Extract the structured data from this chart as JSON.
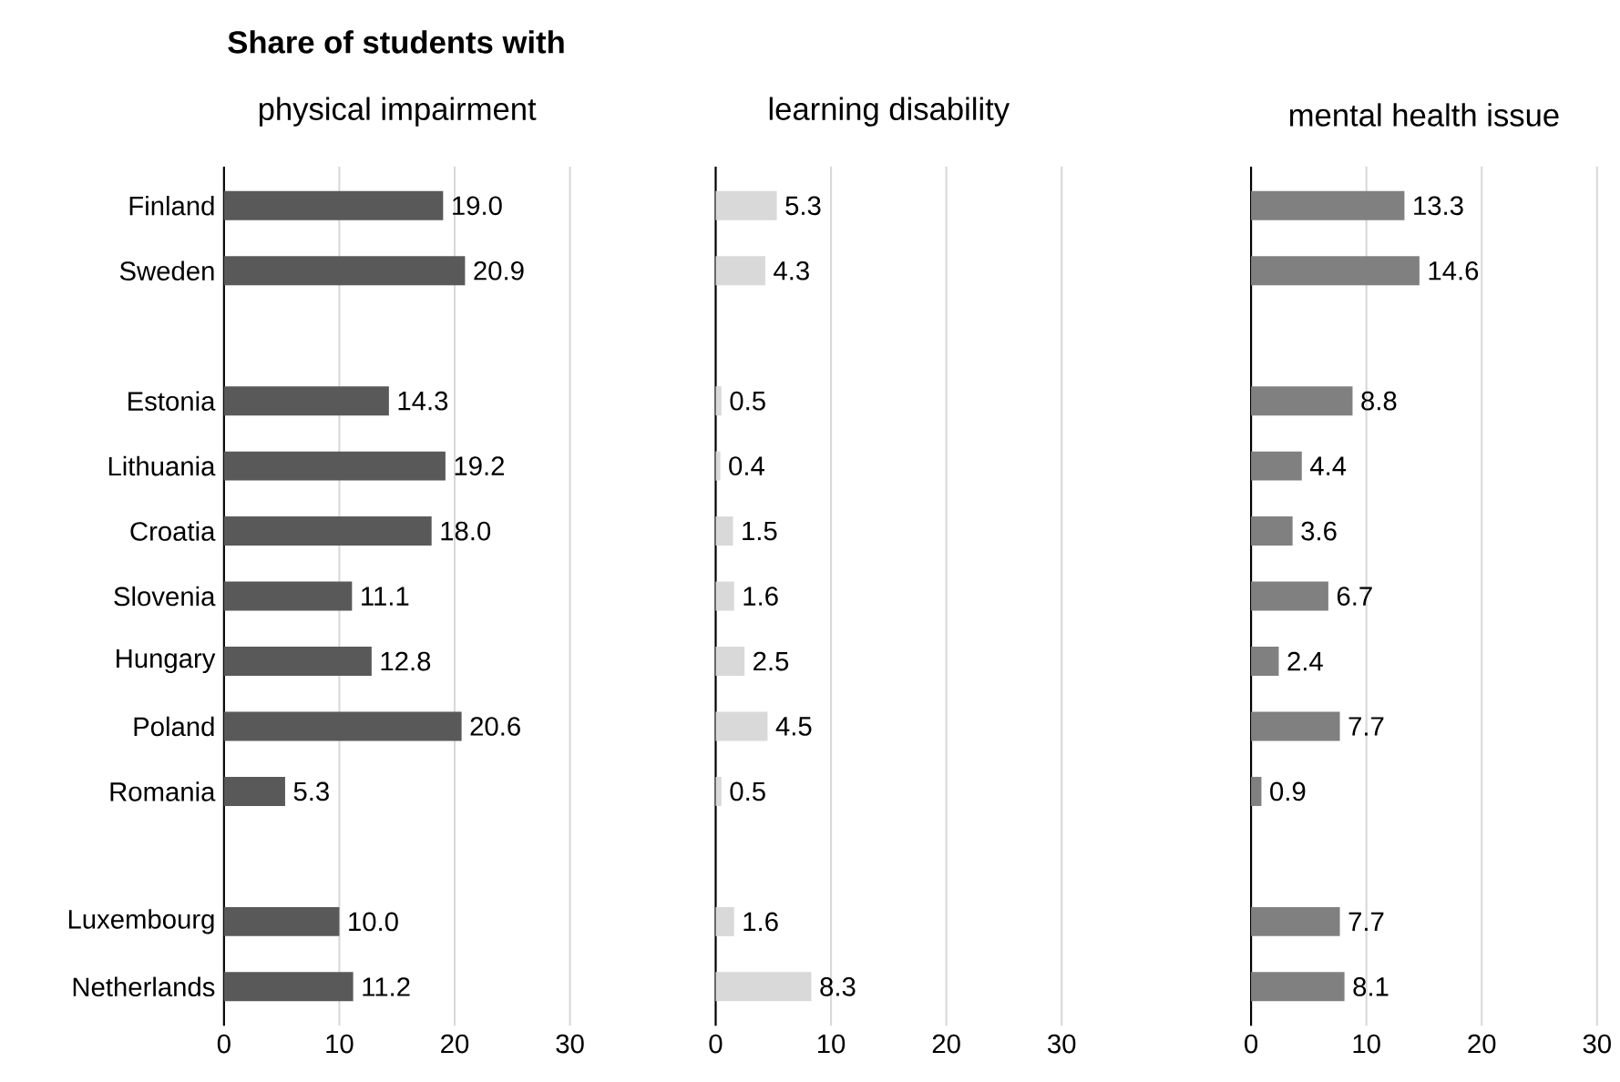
{
  "chart_data": [
    {
      "type": "bar",
      "orientation": "horizontal",
      "title": "Share of students with",
      "subtitle": "physical impairment",
      "categories": [
        "Finland",
        "Sweden",
        null,
        "Estonia",
        "Lithuania",
        "Croatia",
        "Slovenia",
        "Hungary",
        "Poland",
        "Romania",
        null,
        "Luxembourg",
        "Netherlands"
      ],
      "values": [
        19.0,
        20.9,
        null,
        14.3,
        19.2,
        18.0,
        11.1,
        12.8,
        20.6,
        5.3,
        null,
        10.0,
        11.2
      ],
      "value_labels": [
        "19.0",
        "20.9",
        null,
        "14.3",
        "19.2",
        "18.0",
        "11.1",
        "12.8",
        "20.6",
        "5.3",
        null,
        "10.0",
        "11.2"
      ],
      "color": "#595959",
      "xlim": [
        0,
        30
      ],
      "xticks": [
        0,
        10,
        20,
        30
      ],
      "grid": "x"
    },
    {
      "type": "bar",
      "orientation": "horizontal",
      "subtitle": "learning disability",
      "categories": [
        null,
        null,
        null,
        null,
        null,
        null,
        null,
        null,
        null,
        null,
        null,
        null,
        null
      ],
      "values": [
        5.3,
        4.3,
        null,
        0.5,
        0.4,
        1.5,
        1.6,
        2.5,
        4.5,
        0.5,
        null,
        1.6,
        8.3
      ],
      "value_labels": [
        "5.3",
        "4.3",
        null,
        "0.5",
        "0.4",
        "1.5",
        "1.6",
        "2.5",
        "4.5",
        "0.5",
        null,
        "1.6",
        "8.3"
      ],
      "color": "#d9d9d9",
      "xlim": [
        0,
        30
      ],
      "xticks": [
        0,
        10,
        20,
        30
      ],
      "grid": "x",
      "tick_labels": "x"
    },
    {
      "type": "bar",
      "orientation": "horizontal",
      "subtitle": "mental health issue",
      "categories": [
        null,
        null,
        null,
        null,
        null,
        null,
        null,
        null,
        null,
        null,
        null,
        null,
        null
      ],
      "values": [
        13.3,
        14.6,
        null,
        8.8,
        4.4,
        3.6,
        6.7,
        2.4,
        7.7,
        0.9,
        null,
        7.7,
        8.1
      ],
      "value_labels": [
        "13.3",
        "14.6",
        null,
        "8.8",
        "4.4",
        "3.6",
        "6.7",
        "2.4",
        "7.7",
        "0.9",
        null,
        "7.7",
        "8.1"
      ],
      "color": "#808080",
      "xlim": [
        0,
        30
      ],
      "xticks": [
        0,
        10,
        20,
        30
      ],
      "grid": "x",
      "tick_labels": "x"
    }
  ]
}
